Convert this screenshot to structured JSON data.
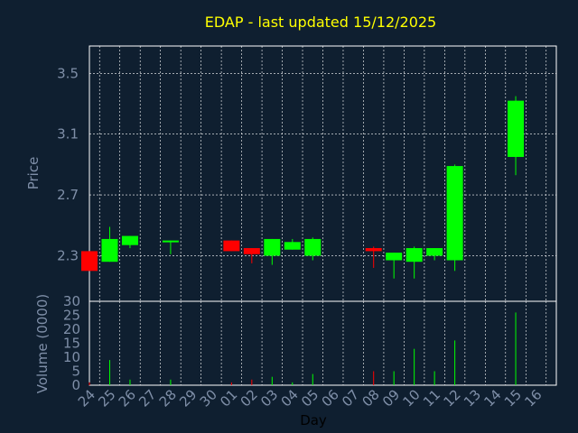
{
  "chart_data": {
    "type": "candlestick",
    "title": "EDAP - last updated 15/12/2025",
    "xlabel": "Day",
    "ylabel": "Price",
    "volume_label": "Volume (0000)",
    "grid": true,
    "price_ylim": [
      2.0,
      3.68
    ],
    "price_ticks": [
      "2.3",
      "2.7",
      "3.1",
      "3.5"
    ],
    "volume_ylim": [
      0,
      30
    ],
    "volume_ticks": [
      "0",
      "5",
      "10",
      "15",
      "20",
      "25",
      "30"
    ],
    "x_ticks": [
      "24",
      "25",
      "26",
      "27",
      "28",
      "29",
      "30",
      "01",
      "02",
      "03",
      "04",
      "05",
      "06",
      "07",
      "08",
      "09",
      "10",
      "11",
      "12",
      "13",
      "14",
      "15",
      "16"
    ],
    "colors": {
      "up": "#00ff00",
      "down": "#ff0000",
      "grid": "#ffffff",
      "frame": "#ffffff",
      "text": "#7f8fa8",
      "title": "#ffff00",
      "background": "#0f1f30",
      "plot": "#0f1f30"
    },
    "candles": [
      {
        "day": "24",
        "open": 2.33,
        "high": 2.33,
        "low": 2.2,
        "close": 2.2,
        "volume": 1.0
      },
      {
        "day": "25",
        "open": 2.26,
        "high": 2.49,
        "low": 2.26,
        "close": 2.41,
        "volume": 9.0
      },
      {
        "day": "26",
        "open": 2.37,
        "high": 2.43,
        "low": 2.35,
        "close": 2.43,
        "volume": 2.0
      },
      {
        "day": "28",
        "open": 2.39,
        "high": 2.4,
        "low": 2.31,
        "close": 2.4,
        "volume": 2.0
      },
      {
        "day": "01",
        "open": 2.4,
        "high": 2.4,
        "low": 2.33,
        "close": 2.33,
        "volume": 1.0
      },
      {
        "day": "02",
        "open": 2.35,
        "high": 2.35,
        "low": 2.25,
        "close": 2.31,
        "volume": 2.0
      },
      {
        "day": "03",
        "open": 2.3,
        "high": 2.41,
        "low": 2.24,
        "close": 2.41,
        "volume": 3.0
      },
      {
        "day": "04",
        "open": 2.34,
        "high": 2.41,
        "low": 2.34,
        "close": 2.39,
        "volume": 1.0
      },
      {
        "day": "05",
        "open": 2.3,
        "high": 2.42,
        "low": 2.27,
        "close": 2.41,
        "volume": 4.0
      },
      {
        "day": "08",
        "open": 2.35,
        "high": 2.36,
        "low": 2.22,
        "close": 2.33,
        "volume": 5.0
      },
      {
        "day": "09",
        "open": 2.27,
        "high": 2.32,
        "low": 2.15,
        "close": 2.32,
        "volume": 5.0
      },
      {
        "day": "10",
        "open": 2.26,
        "high": 2.36,
        "low": 2.15,
        "close": 2.35,
        "volume": 13.0
      },
      {
        "day": "11",
        "open": 2.3,
        "high": 2.35,
        "low": 2.27,
        "close": 2.35,
        "volume": 5.0
      },
      {
        "day": "12",
        "open": 2.27,
        "high": 2.9,
        "low": 2.2,
        "close": 2.89,
        "volume": 16.0
      },
      {
        "day": "15",
        "open": 2.95,
        "high": 3.35,
        "low": 2.83,
        "close": 3.32,
        "volume": 26.0
      }
    ]
  }
}
